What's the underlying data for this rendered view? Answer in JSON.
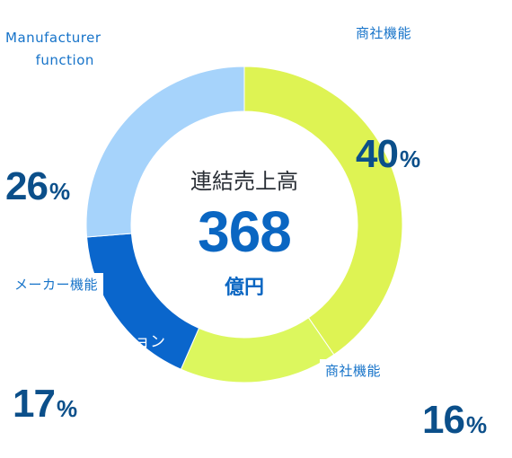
{
  "chart_data": {
    "type": "pie",
    "center_title": "連結売上高",
    "center_value": "368",
    "center_unit": "億円",
    "slices": [
      {
        "label": "商社機能",
        "value": 40,
        "color": "#def353"
      },
      {
        "label": "商社機能",
        "value": 16,
        "color": "#dcf75e"
      },
      {
        "label": "ョン",
        "value": 17,
        "color": "#0a66cc"
      },
      {
        "label": "メーカー機能 / Manufacturer function",
        "value": 26,
        "color": "#a6d3fb"
      }
    ]
  },
  "labels": {
    "trading_top": "商社機能",
    "trading_bottom": "商社機能",
    "maker_en_line1": "Manufacturer",
    "maker_en_line2": "function",
    "maker_jp": "メーカー機能",
    "inside_partial": "ョン",
    "pct_sign": "%",
    "pct_trading_a": "40",
    "pct_trading_b": "16",
    "pct_solution": "17",
    "pct_maker": "26"
  }
}
